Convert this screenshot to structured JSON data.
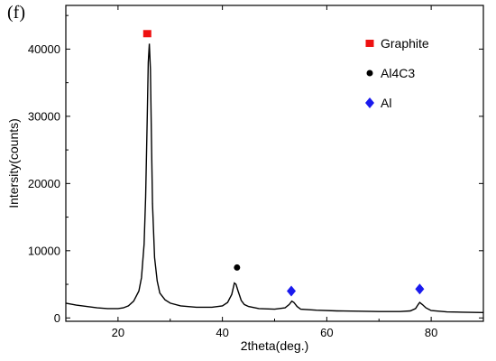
{
  "chart_data": {
    "type": "line",
    "panel_label": "(f)",
    "title": "",
    "xlabel": "2theta(deg.)",
    "ylabel": "Intersity(counts)",
    "xlim": [
      10,
      90
    ],
    "ylim": [
      -500,
      46500
    ],
    "xticks": [
      20,
      40,
      60,
      80
    ],
    "yticks": [
      0,
      10000,
      20000,
      30000,
      40000
    ],
    "grid": false,
    "legend_position": "top-right",
    "line_color": "#000000",
    "series": [
      {
        "x": [
          10,
          12,
          14,
          16,
          18,
          20,
          21,
          22,
          23,
          24,
          24.5,
          25,
          25.3,
          25.6,
          25.8,
          26,
          26.2,
          26.4,
          26.6,
          27,
          27.5,
          28,
          29,
          30,
          32,
          35,
          38,
          40,
          41,
          41.8,
          42.3,
          42.6,
          43,
          43.6,
          44.2,
          45,
          47,
          50,
          52,
          52.8,
          53.3,
          53.7,
          54.3,
          55,
          58,
          62,
          66,
          70,
          74,
          76,
          77,
          77.5,
          77.8,
          78.3,
          79,
          80,
          83,
          86,
          90
        ],
        "y": [
          2200,
          1900,
          1700,
          1500,
          1400,
          1400,
          1500,
          1800,
          2500,
          4000,
          6000,
          11000,
          18000,
          30000,
          38000,
          40800,
          37000,
          27000,
          17000,
          9000,
          5500,
          3700,
          2700,
          2200,
          1800,
          1600,
          1600,
          1800,
          2300,
          3500,
          5200,
          5000,
          4000,
          2600,
          2000,
          1700,
          1400,
          1300,
          1500,
          2000,
          2500,
          2300,
          1700,
          1300,
          1150,
          1050,
          1000,
          950,
          950,
          1050,
          1400,
          2000,
          2300,
          2000,
          1500,
          1100,
          900,
          850,
          800
        ]
      }
    ],
    "legend": [
      {
        "label": "Graphite",
        "marker": "square",
        "color": "#ee1111"
      },
      {
        "label": "Al4C3",
        "marker": "circle",
        "color": "#000000"
      },
      {
        "label": "Al",
        "marker": "diamond",
        "color": "#1a1aee"
      }
    ],
    "peak_markers": [
      {
        "phase": "Graphite",
        "x": 25.6,
        "y": 42300,
        "marker": "square",
        "color": "#ee1111"
      },
      {
        "phase": "Al4C3",
        "x": 42.8,
        "y": 7500,
        "marker": "circle",
        "color": "#000000"
      },
      {
        "phase": "Al",
        "x": 53.2,
        "y": 4000,
        "marker": "diamond",
        "color": "#1a1aee"
      },
      {
        "phase": "Al",
        "x": 77.8,
        "y": 4300,
        "marker": "diamond",
        "color": "#1a1aee"
      }
    ]
  }
}
